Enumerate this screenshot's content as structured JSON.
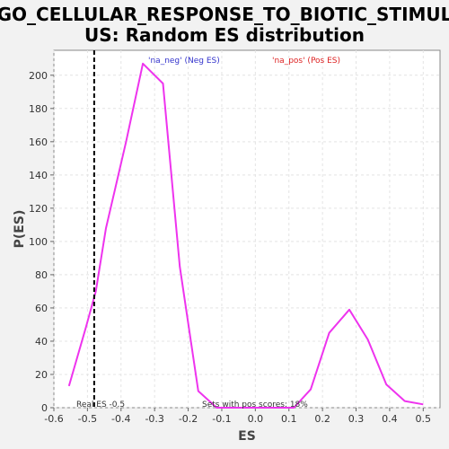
{
  "chart_data": {
    "type": "line",
    "title_line1": "GO_CELLULAR_RESPONSE_TO_BIOTIC_STIMUL",
    "title_line2": "US: Random ES distribution",
    "xlabel": "ES",
    "ylabel": "P(ES)",
    "xlim": [
      -0.6,
      0.55
    ],
    "ylim": [
      0,
      215
    ],
    "xticks": [
      -0.6,
      -0.5,
      -0.4,
      -0.3,
      -0.2,
      -0.1,
      0.0,
      0.1,
      0.2,
      0.3,
      0.4,
      0.5
    ],
    "xtick_labels": [
      "-0.6",
      "-0.5",
      "-0.4",
      "-0.3",
      "-0.2",
      "-0.1",
      "0.0",
      "0.1",
      "0.2",
      "0.3",
      "0.4",
      "0.5"
    ],
    "yticks": [
      0,
      20,
      40,
      60,
      80,
      100,
      120,
      140,
      160,
      180,
      200
    ],
    "ytick_labels": [
      "0",
      "20",
      "40",
      "60",
      "80",
      "100",
      "120",
      "140",
      "160",
      "180",
      "200"
    ],
    "grid": true,
    "series": [
      {
        "color": "#ee33ee",
        "x": [
          -0.555,
          -0.505,
          -0.475,
          -0.445,
          -0.385,
          -0.335,
          -0.275,
          -0.225,
          -0.17,
          -0.115,
          0.0,
          0.115,
          0.165,
          0.22,
          0.28,
          0.335,
          0.39,
          0.445,
          0.5
        ],
        "y": [
          13,
          48,
          70,
          108,
          160,
          207,
          195,
          85,
          10,
          0,
          0,
          0,
          11,
          45,
          59,
          41,
          14,
          4,
          2
        ]
      }
    ],
    "real_es": -0.48,
    "annotations": {
      "neg_legend": "'na_neg' (Neg ES)",
      "pos_legend": "'na_pos' (Pos ES)",
      "real_es_label": "Real ES -0.5",
      "pos_scores_label": "Sets with pos scores: 18%"
    },
    "colors": {
      "neg_legend": "#3333cc",
      "pos_legend": "#dd2222",
      "line": "#ee33ee",
      "real_es_line": "#000000"
    }
  }
}
